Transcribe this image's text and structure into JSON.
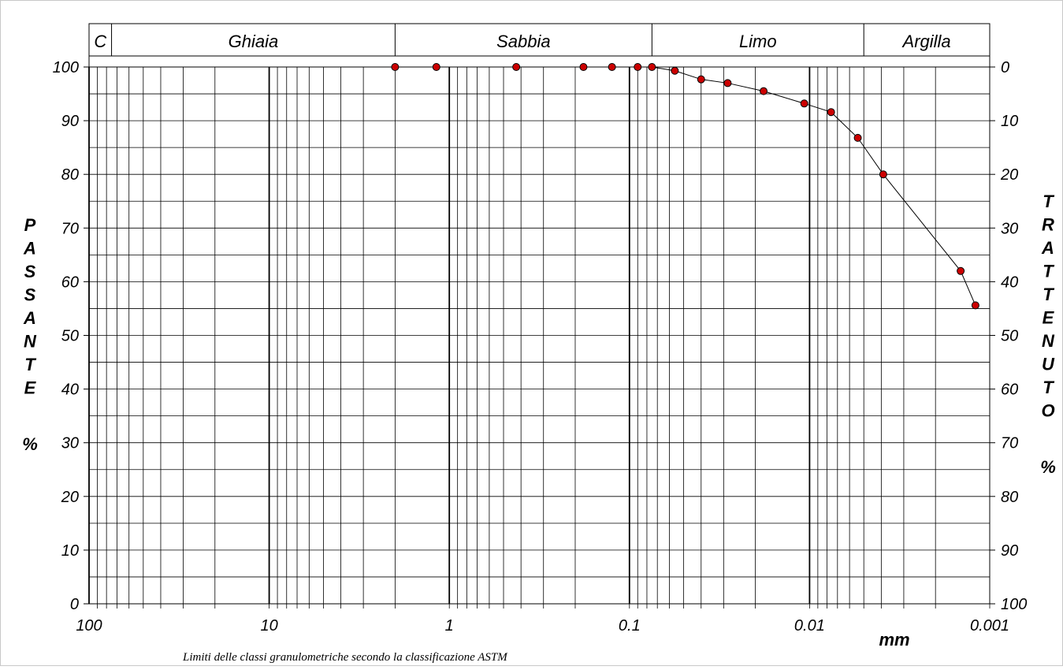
{
  "chart_data": {
    "type": "line",
    "x_scale": "log",
    "x_reversed": true,
    "xlim": [
      100,
      0.001
    ],
    "ylim": [
      0,
      100
    ],
    "grid": true,
    "x_tick_labels": [
      "100",
      "10",
      "1",
      "0.1",
      "0.01",
      "0.001"
    ],
    "y_left_tick_labels": [
      "0",
      "10",
      "20",
      "30",
      "40",
      "50",
      "60",
      "70",
      "80",
      "90",
      "100"
    ],
    "y_right_tick_labels": [
      "100",
      "90",
      "80",
      "70",
      "60",
      "50",
      "40",
      "30",
      "20",
      "10",
      "0"
    ],
    "ylabel_left": "PASSANTE",
    "ylabel_left_unit": "%",
    "ylabel_right": "TRATTENUTO",
    "ylabel_right_unit": "%",
    "xlabel": "mm",
    "caption": "Limiti delle classi granulometriche secondo la classificazione ASTM",
    "classes": [
      {
        "label": "C",
        "from": 100,
        "to": 75
      },
      {
        "label": "Ghiaia",
        "from": 75,
        "to": 2
      },
      {
        "label": "Sabbia",
        "from": 2,
        "to": 0.075
      },
      {
        "label": "Limo",
        "from": 0.075,
        "to": 0.005
      },
      {
        "label": "Argilla",
        "from": 0.005,
        "to": 0.001
      }
    ],
    "series": [
      {
        "color": "#cc0000",
        "line_color": "#000000",
        "points": [
          {
            "x": 2.0,
            "y": 100
          },
          {
            "x": 1.18,
            "y": 100
          },
          {
            "x": 0.425,
            "y": 100
          },
          {
            "x": 0.18,
            "y": 100
          },
          {
            "x": 0.125,
            "y": 100
          },
          {
            "x": 0.09,
            "y": 100
          },
          {
            "x": 0.075,
            "y": 100
          },
          {
            "x": 0.056,
            "y": 99.3
          },
          {
            "x": 0.04,
            "y": 97.7
          },
          {
            "x": 0.0285,
            "y": 97.0
          },
          {
            "x": 0.018,
            "y": 95.5
          },
          {
            "x": 0.0107,
            "y": 93.2
          },
          {
            "x": 0.0076,
            "y": 91.6
          },
          {
            "x": 0.0054,
            "y": 86.8
          },
          {
            "x": 0.0039,
            "y": 80.0
          },
          {
            "x": 0.00145,
            "y": 62.0
          },
          {
            "x": 0.0012,
            "y": 55.6
          }
        ]
      }
    ]
  }
}
